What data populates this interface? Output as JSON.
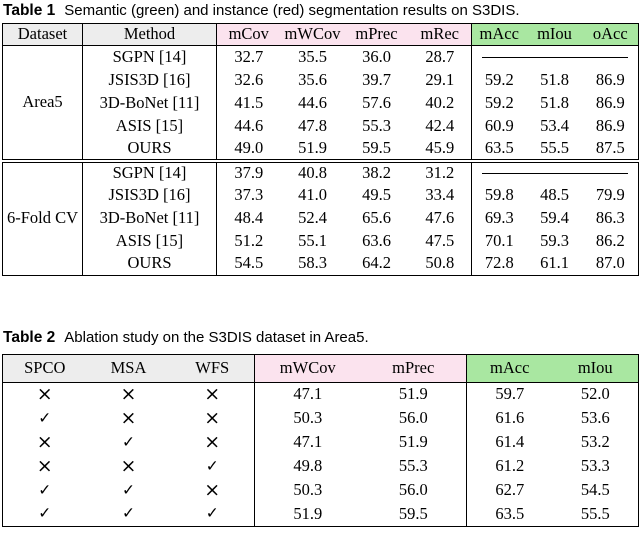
{
  "colors": {
    "pink": "#fbe3ee",
    "green": "#a9e7a1",
    "gray": "#ededed",
    "rule": "#000000"
  },
  "table1": {
    "caption_label": "Table 1",
    "caption_text": "Semantic (green) and instance (red) segmentation results on S3DIS.",
    "col_headers": {
      "dataset": "Dataset",
      "method": "Method",
      "instance": [
        "mCov",
        "mWCov",
        "mPrec",
        "mRec"
      ],
      "semantic": [
        "mAcc",
        "mIou",
        "oAcc"
      ]
    },
    "sections": [
      {
        "dataset": "Area5",
        "rows": [
          {
            "method": "SGPN [14]",
            "instance": [
              "32.7",
              "35.5",
              "36.0",
              "28.7"
            ],
            "semantic": "dash"
          },
          {
            "method": "JSIS3D [16]",
            "instance": [
              "32.6",
              "35.6",
              "39.7",
              "29.1"
            ],
            "semantic": [
              "59.2",
              "51.8",
              "86.9"
            ]
          },
          {
            "method": "3D-BoNet [11]",
            "instance": [
              "41.5",
              "44.6",
              "57.6",
              "40.2"
            ],
            "semantic": [
              "59.2",
              "51.8",
              "86.9"
            ]
          },
          {
            "method": "ASIS [15]",
            "instance": [
              "44.6",
              "47.8",
              "55.3",
              "42.4"
            ],
            "semantic": [
              "60.9",
              "53.4",
              "86.9"
            ]
          },
          {
            "method": "OURS",
            "instance": [
              "49.0",
              "51.9",
              "59.5",
              "45.9"
            ],
            "semantic": [
              "63.5",
              "55.5",
              "87.5"
            ],
            "bold": [
              1,
              1,
              1,
              1,
              1,
              1,
              1
            ]
          }
        ]
      },
      {
        "dataset": "6-Fold CV",
        "rows": [
          {
            "method": "SGPN [14]",
            "instance": [
              "37.9",
              "40.8",
              "38.2",
              "31.2"
            ],
            "semantic": "dash"
          },
          {
            "method": "JSIS3D [16]",
            "instance": [
              "37.3",
              "41.0",
              "49.5",
              "33.4"
            ],
            "semantic": [
              "59.8",
              "48.5",
              "79.9"
            ]
          },
          {
            "method": "3D-BoNet [11]",
            "instance": [
              "48.4",
              "52.4",
              "65.6",
              "47.6"
            ],
            "semantic": [
              "69.3",
              "59.4",
              "86.3"
            ],
            "bold": [
              0,
              0,
              1,
              0,
              0,
              0,
              0
            ]
          },
          {
            "method": "ASIS [15]",
            "instance": [
              "51.2",
              "55.1",
              "63.6",
              "47.5"
            ],
            "semantic": [
              "70.1",
              "59.3",
              "86.2"
            ]
          },
          {
            "method": "OURS",
            "instance": [
              "54.5",
              "58.3",
              "64.2",
              "50.8"
            ],
            "semantic": [
              "72.8",
              "61.1",
              "87.0"
            ],
            "bold": [
              1,
              1,
              0,
              1,
              1,
              1,
              1
            ]
          }
        ]
      }
    ]
  },
  "table2": {
    "caption_label": "Table 2",
    "caption_text": "Ablation study on the S3DIS dataset in Area5.",
    "col_headers": {
      "flags": [
        "SPCO",
        "MSA",
        "WFS"
      ],
      "instance": [
        "mWCov",
        "mPrec"
      ],
      "semantic": [
        "mAcc",
        "mIou"
      ]
    },
    "symbols": {
      "check": "✓",
      "cross": "×"
    },
    "rows": [
      {
        "flags": [
          0,
          0,
          0
        ],
        "values": [
          "47.1",
          "51.9",
          "59.7",
          "52.0"
        ],
        "bold": 0
      },
      {
        "flags": [
          1,
          0,
          0
        ],
        "values": [
          "50.3",
          "56.0",
          "61.6",
          "53.6"
        ],
        "bold": 0
      },
      {
        "flags": [
          0,
          1,
          0
        ],
        "values": [
          "47.1",
          "51.9",
          "61.4",
          "53.2"
        ],
        "bold": 0
      },
      {
        "flags": [
          0,
          0,
          1
        ],
        "values": [
          "49.8",
          "55.3",
          "61.2",
          "53.3"
        ],
        "bold": 0
      },
      {
        "flags": [
          1,
          1,
          0
        ],
        "values": [
          "50.3",
          "56.0",
          "62.7",
          "54.5"
        ],
        "bold": 0
      },
      {
        "flags": [
          1,
          1,
          1
        ],
        "values": [
          "51.9",
          "59.5",
          "63.5",
          "55.5"
        ],
        "bold": 1
      }
    ]
  }
}
